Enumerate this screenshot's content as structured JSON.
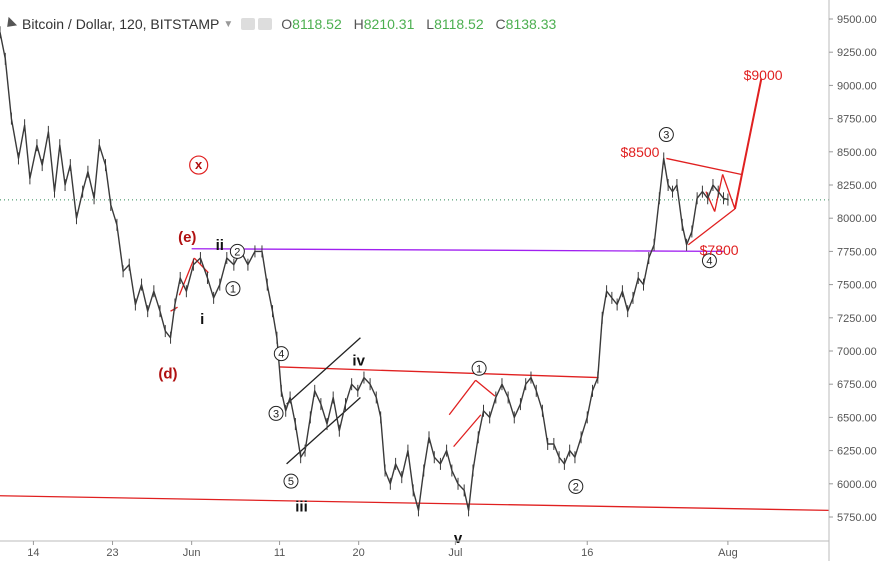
{
  "header": {
    "symbol": "Bitcoin / Dollar, 120, BITSTAMP",
    "ohlc": [
      {
        "k": "O",
        "v": "8118.52"
      },
      {
        "k": "H",
        "v": "8210.31"
      },
      {
        "k": "L",
        "v": "8118.52"
      },
      {
        "k": "C",
        "v": "8138.33"
      }
    ]
  },
  "colors": {
    "price": "#3a3a3a",
    "annotation": "#e02020",
    "purple": "#a020f0",
    "dotted": "#2e8b57",
    "axis": "#555555"
  },
  "chart_data": {
    "type": "line",
    "ylim": [
      5550,
      9600
    ],
    "y_ticks": [
      9500,
      9250,
      9000,
      8750,
      8500,
      8250,
      8000,
      7750,
      7500,
      7250,
      7000,
      6750,
      6500,
      6250,
      6000,
      5750
    ],
    "y_tick_labels": [
      "9500.00",
      "9250.00",
      "9000.00",
      "8750.00",
      "8500.00",
      "8250.00",
      "8000.00",
      "7750.00",
      "7500.00",
      "7250.00",
      "7000.00",
      "6750.00",
      "6500.00",
      "6250.00",
      "6000.00",
      "5750.00"
    ],
    "x_ticks": [
      {
        "label": "14",
        "day": 14
      },
      {
        "label": "23",
        "day": 23
      },
      {
        "label": "Jun",
        "day": 32
      },
      {
        "label": "11",
        "day": 42
      },
      {
        "label": "20",
        "day": 51
      },
      {
        "label": "Jul",
        "day": 62
      },
      {
        "label": "16",
        "day": 77
      },
      {
        "label": "Aug",
        "day": 93
      }
    ],
    "xlim": [
      10.2,
      104.5
    ],
    "series": [
      {
        "points": [
          [
            10.2,
            9400
          ],
          [
            10.8,
            9200
          ],
          [
            11.5,
            8750
          ],
          [
            12.3,
            8450
          ],
          [
            13,
            8700
          ],
          [
            13.6,
            8300
          ],
          [
            14.4,
            8550
          ],
          [
            15,
            8400
          ],
          [
            15.7,
            8650
          ],
          [
            16.4,
            8200
          ],
          [
            17,
            8550
          ],
          [
            17.6,
            8250
          ],
          [
            18.2,
            8400
          ],
          [
            18.9,
            8000
          ],
          [
            19.6,
            8200
          ],
          [
            20.2,
            8350
          ],
          [
            20.9,
            8150
          ],
          [
            21.5,
            8550
          ],
          [
            22.2,
            8400
          ],
          [
            22.8,
            8100
          ],
          [
            23.5,
            7950
          ],
          [
            24.2,
            7600
          ],
          [
            24.9,
            7650
          ],
          [
            25.6,
            7350
          ],
          [
            26.3,
            7500
          ],
          [
            27,
            7300
          ],
          [
            27.7,
            7450
          ],
          [
            28.4,
            7300
          ],
          [
            29,
            7150
          ],
          [
            29.6,
            7100
          ],
          [
            30.1,
            7350
          ],
          [
            30.7,
            7550
          ],
          [
            31.4,
            7450
          ],
          [
            32.2,
            7650
          ],
          [
            33,
            7700
          ],
          [
            33.8,
            7550
          ],
          [
            34.5,
            7400
          ],
          [
            35.2,
            7500
          ],
          [
            36,
            7700
          ],
          [
            36.8,
            7650
          ],
          [
            37.6,
            7750
          ],
          [
            38.4,
            7650
          ],
          [
            39.2,
            7750
          ],
          [
            40,
            7750
          ],
          [
            40.6,
            7500
          ],
          [
            41.2,
            7300
          ],
          [
            41.7,
            7100
          ],
          [
            42.2,
            6700
          ],
          [
            42.7,
            6550
          ],
          [
            43.2,
            6650
          ],
          [
            43.8,
            6450
          ],
          [
            44.4,
            6200
          ],
          [
            44.9,
            6250
          ],
          [
            45.5,
            6500
          ],
          [
            46,
            6700
          ],
          [
            46.7,
            6600
          ],
          [
            47.4,
            6450
          ],
          [
            48.1,
            6650
          ],
          [
            48.8,
            6400
          ],
          [
            49.5,
            6600
          ],
          [
            50.2,
            6750
          ],
          [
            50.9,
            6700
          ],
          [
            51.6,
            6800
          ],
          [
            52.3,
            6750
          ],
          [
            53,
            6650
          ],
          [
            53.5,
            6500
          ],
          [
            54,
            6100
          ],
          [
            54.6,
            6000
          ],
          [
            55.2,
            6150
          ],
          [
            55.9,
            6050
          ],
          [
            56.6,
            6250
          ],
          [
            57.2,
            5950
          ],
          [
            57.8,
            5800
          ],
          [
            58.4,
            6100
          ],
          [
            59,
            6350
          ],
          [
            59.6,
            6200
          ],
          [
            60.3,
            6150
          ],
          [
            61,
            6250
          ],
          [
            61.6,
            6100
          ],
          [
            62.3,
            6000
          ],
          [
            63,
            5950
          ],
          [
            63.5,
            5800
          ],
          [
            64,
            6100
          ],
          [
            64.6,
            6350
          ],
          [
            65.2,
            6550
          ],
          [
            65.9,
            6500
          ],
          [
            66.6,
            6650
          ],
          [
            67.3,
            6750
          ],
          [
            68,
            6650
          ],
          [
            68.7,
            6500
          ],
          [
            69.4,
            6600
          ],
          [
            70,
            6750
          ],
          [
            70.6,
            6800
          ],
          [
            71.2,
            6700
          ],
          [
            71.9,
            6550
          ],
          [
            72.5,
            6300
          ],
          [
            73.2,
            6300
          ],
          [
            73.8,
            6200
          ],
          [
            74.4,
            6150
          ],
          [
            75,
            6250
          ],
          [
            75.6,
            6200
          ],
          [
            76.3,
            6350
          ],
          [
            77,
            6500
          ],
          [
            77.6,
            6700
          ],
          [
            78.2,
            6800
          ],
          [
            78.7,
            7250
          ],
          [
            79.2,
            7450
          ],
          [
            79.8,
            7400
          ],
          [
            80.4,
            7350
          ],
          [
            81,
            7450
          ],
          [
            81.6,
            7300
          ],
          [
            82.2,
            7400
          ],
          [
            82.8,
            7550
          ],
          [
            83.4,
            7500
          ],
          [
            84,
            7700
          ],
          [
            84.6,
            7800
          ],
          [
            85.2,
            8150
          ],
          [
            85.7,
            8450
          ],
          [
            86.2,
            8250
          ],
          [
            86.7,
            8200
          ],
          [
            87.2,
            8250
          ],
          [
            87.8,
            7950
          ],
          [
            88.3,
            7800
          ],
          [
            88.9,
            7900
          ],
          [
            89.5,
            8150
          ],
          [
            90.1,
            8200
          ],
          [
            90.7,
            8150
          ],
          [
            91.3,
            8250
          ],
          [
            91.9,
            8200
          ],
          [
            92.5,
            8150
          ],
          [
            93,
            8140
          ]
        ]
      }
    ],
    "reference_line": {
      "value": 8138.33
    },
    "annotations": [
      {
        "text": "(x)",
        "day": 32.8,
        "price": 8400,
        "style": "circle-red"
      },
      {
        "text": "(e)",
        "day": 31.5,
        "price": 7860,
        "style": "red-bold"
      },
      {
        "text": "(d)",
        "day": 29.3,
        "price": 6830,
        "style": "red-bold"
      },
      {
        "text": "ii",
        "day": 35.2,
        "price": 7800,
        "style": "black-bold"
      },
      {
        "text": "i",
        "day": 33.2,
        "price": 7240,
        "style": "black-bold"
      },
      {
        "text": "iii",
        "day": 44.5,
        "price": 5830,
        "style": "black-bold"
      },
      {
        "text": "iv",
        "day": 51.0,
        "price": 6930,
        "style": "black-bold"
      },
      {
        "text": "v",
        "day": 62.3,
        "price": 5590,
        "style": "black-bold"
      },
      {
        "text": "2",
        "day": 37.2,
        "price": 7750,
        "style": "circle"
      },
      {
        "text": "1",
        "day": 36.7,
        "price": 7470,
        "style": "circle"
      },
      {
        "text": "4",
        "day": 42.2,
        "price": 6980,
        "style": "circle"
      },
      {
        "text": "3",
        "day": 41.6,
        "price": 6530,
        "style": "circle"
      },
      {
        "text": "5",
        "day": 43.3,
        "price": 6020,
        "style": "circle"
      },
      {
        "text": "1",
        "day": 64.7,
        "price": 6870,
        "style": "circle"
      },
      {
        "text": "2",
        "day": 75.7,
        "price": 5980,
        "style": "circle"
      },
      {
        "text": "3",
        "day": 86.0,
        "price": 8630,
        "style": "circle"
      },
      {
        "text": "4",
        "day": 90.9,
        "price": 7680,
        "style": "circle"
      },
      {
        "text": "$8500",
        "day": 83.0,
        "price": 8500,
        "style": "red-label"
      },
      {
        "text": "$7800",
        "day": 92.0,
        "price": 7760,
        "style": "red-label"
      },
      {
        "text": "$9000",
        "day": 97.0,
        "price": 9080,
        "style": "red-label"
      }
    ],
    "trendlines": [
      {
        "color": "purple",
        "from": [
          32.0,
          7770
        ],
        "to": [
          92.5,
          7750
        ]
      },
      {
        "color": "red",
        "from": [
          10.2,
          5910
        ],
        "to": [
          104.5,
          5800
        ]
      },
      {
        "color": "red",
        "from": [
          42.0,
          6880
        ],
        "to": [
          78.3,
          6800
        ]
      },
      {
        "color": "red",
        "from": [
          30.6,
          7420
        ],
        "to": [
          32.3,
          7700
        ]
      },
      {
        "color": "red",
        "from": [
          32.3,
          7700
        ],
        "to": [
          33.9,
          7590
        ]
      },
      {
        "color": "red",
        "from": [
          29.6,
          7300
        ],
        "to": [
          30.4,
          7330
        ]
      },
      {
        "color": "red",
        "from": [
          61.3,
          6520
        ],
        "to": [
          64.3,
          6780
        ]
      },
      {
        "color": "red",
        "from": [
          64.3,
          6780
        ],
        "to": [
          66.5,
          6660
        ]
      },
      {
        "color": "red",
        "from": [
          61.8,
          6280
        ],
        "to": [
          64.9,
          6520
        ]
      },
      {
        "color": "red",
        "from": [
          86.0,
          8450
        ],
        "to": [
          94.5,
          8330
        ]
      },
      {
        "color": "red",
        "from": [
          88.5,
          7800
        ],
        "to": [
          93.8,
          8070
        ]
      },
      {
        "color": "red",
        "from": [
          90.5,
          8200
        ],
        "to": [
          91.5,
          8050
        ]
      },
      {
        "color": "red",
        "from": [
          91.5,
          8050
        ],
        "to": [
          92.4,
          8330
        ]
      },
      {
        "color": "red",
        "from": [
          92.4,
          8330
        ],
        "to": [
          93.8,
          8070
        ]
      },
      {
        "color": "red",
        "from": [
          93.8,
          8070
        ],
        "to": [
          96.8,
          9050
        ]
      },
      {
        "color": "black",
        "from": [
          42.8,
          6600
        ],
        "to": [
          51.2,
          7100
        ]
      },
      {
        "color": "black",
        "from": [
          42.8,
          6150
        ],
        "to": [
          51.2,
          6650
        ]
      }
    ]
  }
}
